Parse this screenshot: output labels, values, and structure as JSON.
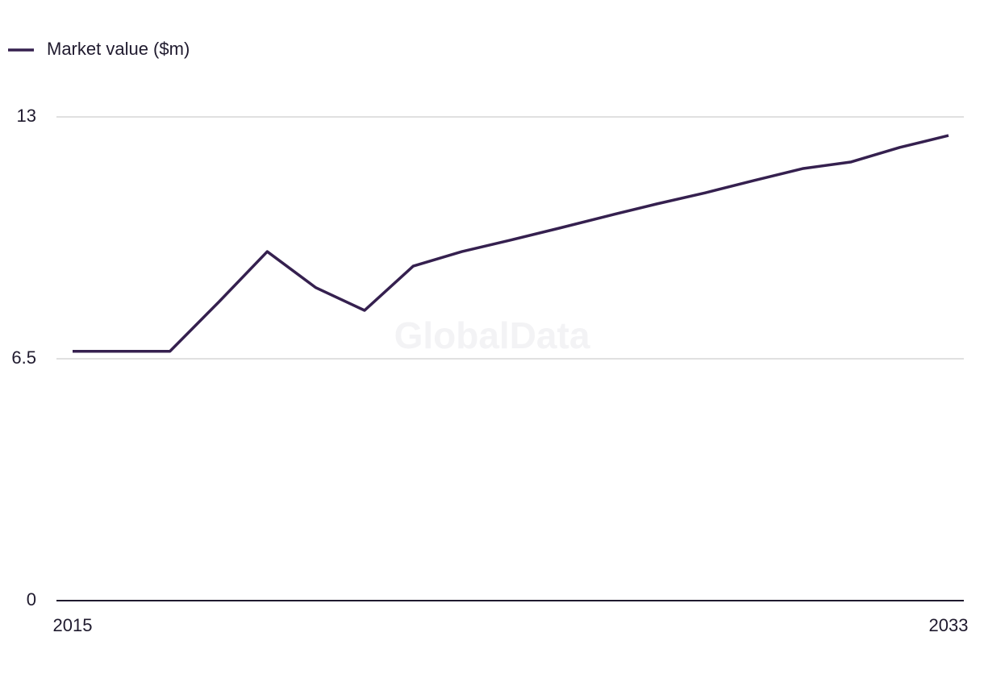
{
  "chart_data": {
    "type": "line",
    "watermark": "GlobalData",
    "x": [
      2015,
      2016,
      2017,
      2018,
      2019,
      2020,
      2021,
      2022,
      2023,
      2024,
      2025,
      2026,
      2027,
      2028,
      2029,
      2030,
      2031,
      2032,
      2033
    ],
    "series": [
      {
        "name": "Market value ($m)",
        "color": "#35204f",
        "values": [
          6.7,
          6.7,
          6.7,
          8.02,
          9.38,
          8.41,
          7.8,
          8.99,
          9.38,
          9.69,
          10.01,
          10.34,
          10.66,
          10.96,
          11.29,
          11.61,
          11.79,
          12.18,
          12.5
        ]
      }
    ],
    "xlim": [
      2015,
      2033
    ],
    "xticks": [
      2015,
      2033
    ],
    "ylim": [
      0,
      13
    ],
    "yticks": [
      0,
      6.5,
      13
    ],
    "grid": true,
    "legend": "top-left"
  }
}
